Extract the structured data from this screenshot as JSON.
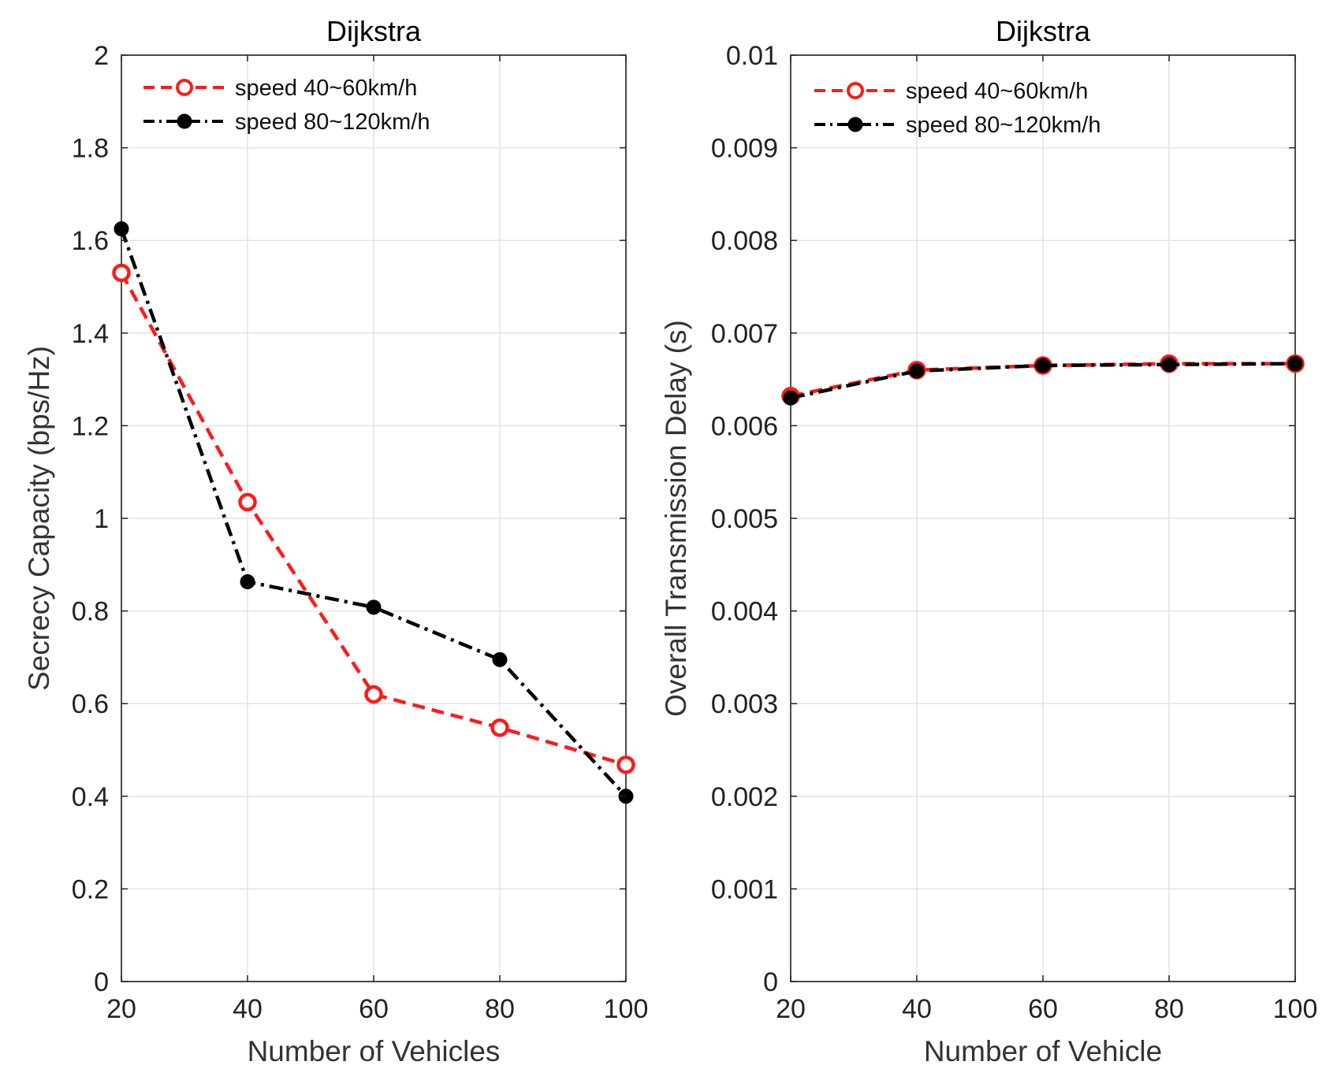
{
  "chart_data": [
    {
      "type": "line",
      "title": "Dijkstra",
      "xlabel": "Number of Vehicles",
      "ylabel": "Secrecy Capacity (bps/Hz)",
      "x": [
        20,
        40,
        60,
        80,
        100
      ],
      "xlim": [
        20,
        100
      ],
      "ylim": [
        0,
        2
      ],
      "xticks": [
        "20",
        "40",
        "60",
        "80",
        "100"
      ],
      "yticks": [
        "0",
        "0.2",
        "0.4",
        "0.6",
        "0.8",
        "1",
        "1.2",
        "1.4",
        "1.6",
        "1.8",
        "2"
      ],
      "grid": true,
      "legend_position": "top-left",
      "series": [
        {
          "name": "speed 40~60km/h",
          "values": [
            1.53,
            1.035,
            0.62,
            0.548,
            0.468
          ],
          "color": "#ff1a1a",
          "marker": "open-circle",
          "dash": "dashed"
        },
        {
          "name": "speed 80~120km/h",
          "values": [
            1.625,
            0.863,
            0.808,
            0.695,
            0.4
          ],
          "color": "#000000",
          "marker": "filled-circle",
          "dash": "dash-dot"
        }
      ]
    },
    {
      "type": "line",
      "title": "Dijkstra",
      "xlabel": "Number of Vehicle",
      "ylabel": "Overall Transmission Delay (s)",
      "x": [
        20,
        40,
        60,
        80,
        100
      ],
      "xlim": [
        20,
        100
      ],
      "ylim": [
        0,
        0.01
      ],
      "xticks": [
        "20",
        "40",
        "60",
        "80",
        "100"
      ],
      "yticks": [
        "0",
        "0.001",
        "0.002",
        "0.003",
        "0.004",
        "0.005",
        "0.006",
        "0.007",
        "0.008",
        "0.009",
        "0.01"
      ],
      "grid": true,
      "legend_position": "top-left",
      "series": [
        {
          "name": "speed 40~60km/h",
          "values": [
            0.00632,
            0.0066,
            0.00665,
            0.00667,
            0.00667
          ],
          "color": "#ff1a1a",
          "marker": "open-circle",
          "dash": "dashed"
        },
        {
          "name": "speed 80~120km/h",
          "values": [
            0.0063,
            0.00659,
            0.00665,
            0.00666,
            0.00667
          ],
          "color": "#000000",
          "marker": "filled-circle",
          "dash": "dash-dot"
        }
      ]
    }
  ]
}
